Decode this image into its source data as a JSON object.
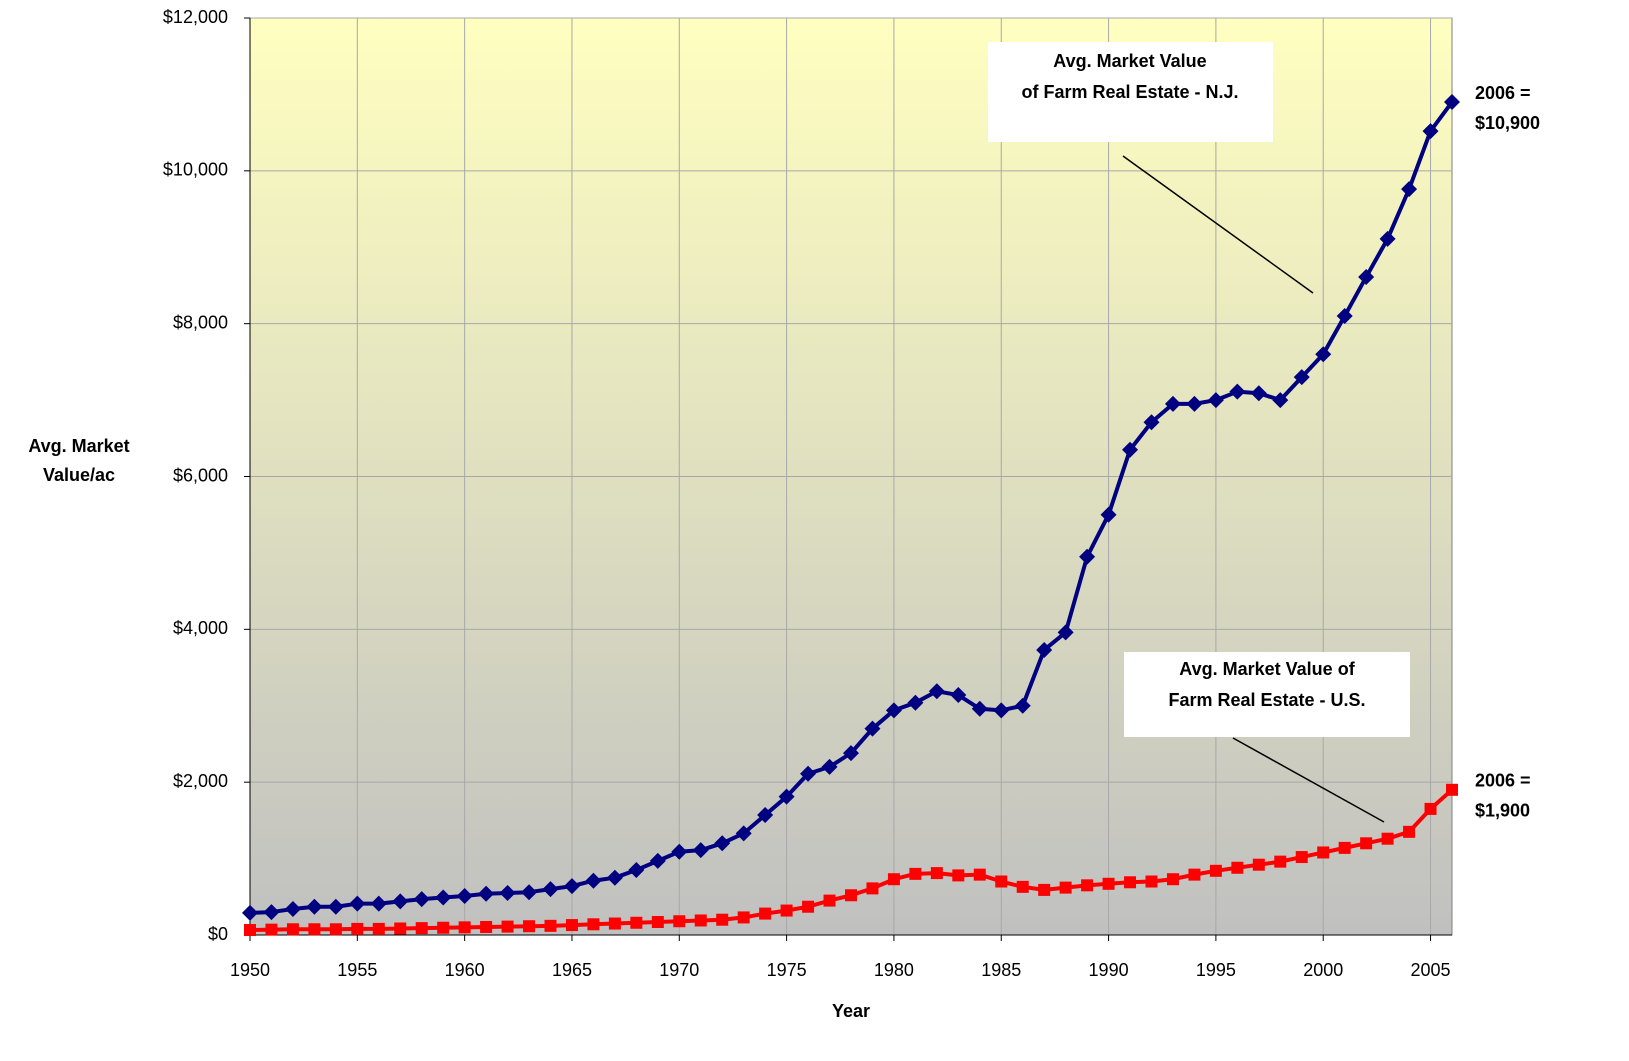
{
  "chart_data": {
    "type": "line",
    "x_label": "Year",
    "y_label": [
      "Avg. Market",
      "Value/ac"
    ],
    "x": [
      1950,
      1951,
      1952,
      1953,
      1954,
      1955,
      1956,
      1957,
      1958,
      1959,
      1960,
      1961,
      1962,
      1963,
      1964,
      1965,
      1966,
      1967,
      1968,
      1969,
      1970,
      1971,
      1972,
      1973,
      1974,
      1975,
      1976,
      1977,
      1978,
      1979,
      1980,
      1981,
      1982,
      1983,
      1984,
      1985,
      1986,
      1987,
      1988,
      1989,
      1990,
      1991,
      1992,
      1993,
      1994,
      1995,
      1996,
      1997,
      1998,
      1999,
      2000,
      2001,
      2002,
      2003,
      2004,
      2005,
      2006
    ],
    "series": [
      {
        "name": [
          "Avg. Market Value",
          "of Farm Real Estate - N.J."
        ],
        "color": "#000080",
        "marker": "diamond",
        "end_label": [
          "2006 =",
          "$10,900"
        ],
        "values": [
          290,
          300,
          340,
          370,
          370,
          410,
          410,
          440,
          470,
          490,
          510,
          540,
          550,
          560,
          600,
          640,
          710,
          750,
          850,
          970,
          1090,
          1110,
          1200,
          1330,
          1570,
          1810,
          2110,
          2200,
          2380,
          2700,
          2940,
          3040,
          3190,
          3140,
          2960,
          2940,
          3000,
          3730,
          3960,
          4950,
          5500,
          6350,
          6710,
          6950,
          6950,
          7000,
          7110,
          7090,
          7000,
          7300,
          7600,
          8100,
          8610,
          9110,
          9760,
          10520,
          10900
        ]
      },
      {
        "name": [
          "Avg. Market Value of",
          "Farm Real Estate - U.S."
        ],
        "color": "#ff0000",
        "marker": "square",
        "end_label": [
          "2006 =",
          "$1,900"
        ],
        "values": [
          65,
          70,
          75,
          75,
          75,
          80,
          80,
          85,
          90,
          95,
          100,
          105,
          110,
          115,
          120,
          130,
          140,
          150,
          160,
          170,
          180,
          190,
          200,
          230,
          280,
          320,
          370,
          450,
          520,
          610,
          730,
          800,
          810,
          780,
          790,
          700,
          630,
          590,
          620,
          650,
          670,
          690,
          700,
          730,
          790,
          840,
          880,
          920,
          960,
          1020,
          1080,
          1140,
          1200,
          1260,
          1350,
          1650,
          1900
        ]
      }
    ],
    "xlim": [
      1950,
      2006
    ],
    "xticks": [
      1950,
      1955,
      1960,
      1965,
      1970,
      1975,
      1980,
      1985,
      1990,
      1995,
      2000,
      2005
    ],
    "ylim": [
      0,
      12000
    ],
    "yticks": [
      {
        "value": 0,
        "label": "$0"
      },
      {
        "value": 2000,
        "label": "$2,000"
      },
      {
        "value": 4000,
        "label": "$4,000"
      },
      {
        "value": 6000,
        "label": "$6,000"
      },
      {
        "value": 8000,
        "label": "$8,000"
      },
      {
        "value": 10000,
        "label": "$10,000"
      },
      {
        "value": 12000,
        "label": "$12,000"
      }
    ],
    "grid": true
  }
}
